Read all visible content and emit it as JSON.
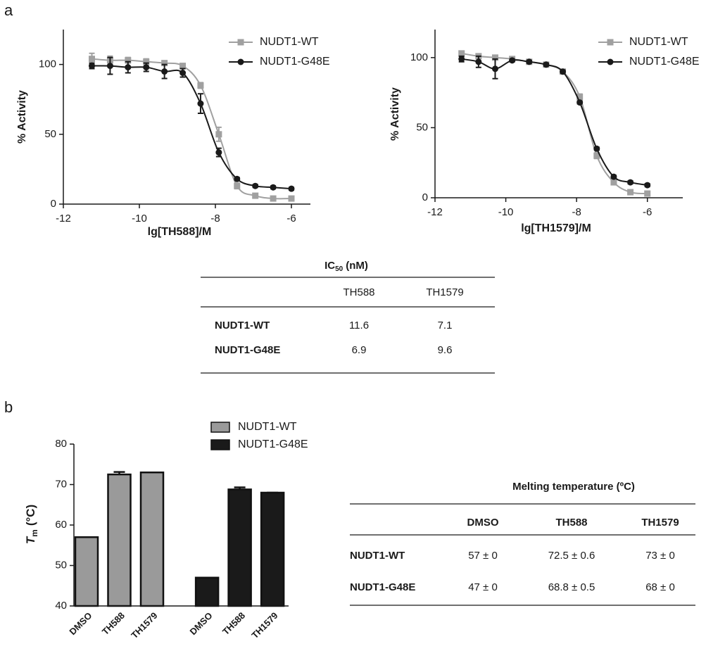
{
  "panels": [
    "a",
    "b"
  ],
  "chart_data": [
    {
      "type": "line",
      "x_label": "lg[TH588]/M",
      "y_label": "% Activity",
      "xlim": [
        -12,
        -5.5
      ],
      "xticks": [
        -12,
        -10,
        -8,
        -6
      ],
      "ylim": [
        0,
        125
      ],
      "yticks": [
        0,
        50,
        100
      ],
      "x": [
        -11.25,
        -10.77,
        -10.3,
        -9.82,
        -9.34,
        -8.86,
        -8.39,
        -7.91,
        -7.43,
        -6.95,
        -6.48,
        -6.0
      ],
      "series": [
        {
          "name": "NUDT1-WT",
          "color": "#a0a0a0",
          "marker": "square",
          "values": [
            104,
            103,
            103,
            102,
            101,
            99,
            85,
            50,
            13,
            6,
            4,
            4
          ],
          "errors": [
            4,
            3,
            2,
            2,
            1,
            1,
            2,
            5,
            2,
            1,
            1,
            1
          ]
        },
        {
          "name": "NUDT1-G48E",
          "color": "#1a1a1a",
          "marker": "circle",
          "values": [
            99,
            99,
            98,
            98,
            95,
            94,
            72,
            37,
            18,
            13,
            12,
            11
          ],
          "errors": [
            2,
            6,
            4,
            3,
            5,
            3,
            7,
            3,
            1,
            1,
            1,
            1
          ]
        }
      ]
    },
    {
      "type": "line",
      "x_label": "lg[TH1579]/M",
      "y_label": "% Activity",
      "xlim": [
        -12,
        -5
      ],
      "xticks": [
        -12,
        -10,
        -8,
        -6
      ],
      "ylim": [
        0,
        120
      ],
      "yticks": [
        0,
        50,
        100
      ],
      "x": [
        -11.25,
        -10.77,
        -10.3,
        -9.82,
        -9.34,
        -8.86,
        -8.39,
        -7.91,
        -7.43,
        -6.95,
        -6.48,
        -6.0
      ],
      "series": [
        {
          "name": "NUDT1-WT",
          "color": "#a0a0a0",
          "marker": "square",
          "values": [
            103,
            101,
            100,
            99,
            97,
            95,
            90,
            72,
            30,
            11,
            4,
            3
          ],
          "errors": [
            1,
            1,
            1,
            1,
            1,
            1,
            1,
            2,
            2,
            1,
            1,
            1
          ]
        },
        {
          "name": "NUDT1-G48E",
          "color": "#1a1a1a",
          "marker": "circle",
          "values": [
            99,
            97,
            92,
            98,
            97,
            95,
            90,
            68,
            35,
            15,
            11,
            9
          ],
          "errors": [
            2,
            4,
            7,
            1,
            1,
            1,
            1,
            1,
            1,
            1,
            1,
            1
          ]
        }
      ]
    },
    {
      "type": "bar",
      "y_label": {
        "symbol": "T",
        "subscript": "m",
        "unit": "(°C)"
      },
      "categories": [
        "DMSO",
        "TH588",
        "TH1579"
      ],
      "ylim": [
        40,
        80
      ],
      "yticks": [
        40,
        50,
        60,
        70,
        80
      ],
      "series": [
        {
          "name": "NUDT1-WT",
          "color": "#9a9a9a",
          "values": [
            57,
            72.5,
            73
          ],
          "errors": [
            0,
            0.6,
            0
          ]
        },
        {
          "name": "NUDT1-G48E",
          "color": "#1a1a1a",
          "values": [
            47,
            68.8,
            68
          ],
          "errors": [
            0,
            0.5,
            0
          ]
        }
      ]
    }
  ],
  "tables": [
    {
      "title": {
        "main": "IC",
        "subscript": "50",
        "unit": "(nM)"
      },
      "columns": [
        "TH588",
        "TH1579"
      ],
      "rows": [
        {
          "label": "NUDT1-WT",
          "values": [
            11.6,
            7.1
          ]
        },
        {
          "label": "NUDT1-G48E",
          "values": [
            6.9,
            9.6
          ]
        }
      ]
    },
    {
      "title": "Melting temperature (ºC)",
      "columns": [
        "DMSO",
        "TH588",
        "TH1579"
      ],
      "rows": [
        {
          "label": "NUDT1-WT",
          "values": [
            "57 ± 0",
            "72.5 ± 0.6",
            "73 ± 0"
          ]
        },
        {
          "label": "NUDT1-G48E",
          "values": [
            "47 ± 0",
            "68.8 ± 0.5",
            "68 ± 0"
          ]
        }
      ]
    }
  ]
}
